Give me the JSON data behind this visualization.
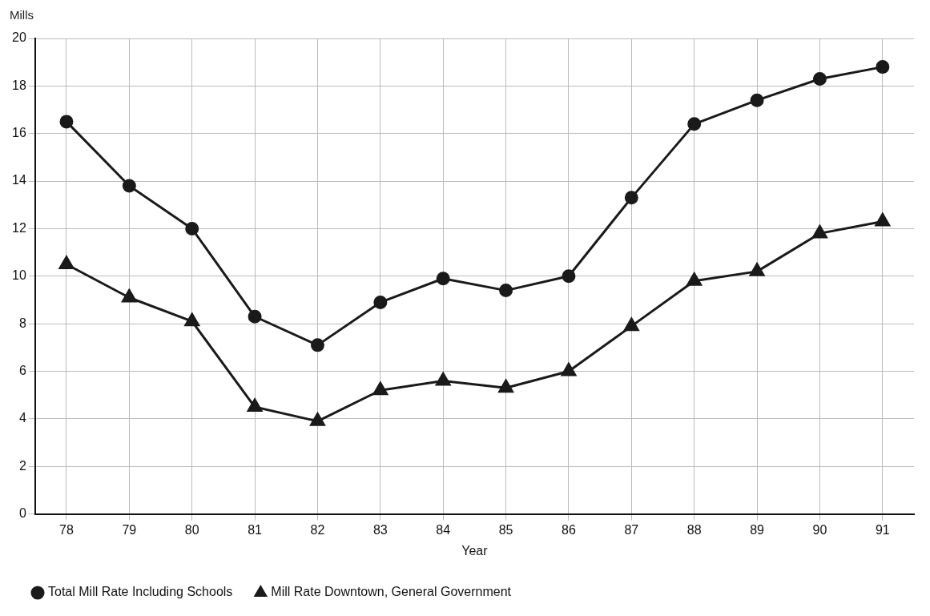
{
  "chart_data": {
    "type": "line",
    "xlabel": "Year",
    "ylabel": "Mills",
    "categories": [
      "78",
      "79",
      "80",
      "81",
      "82",
      "83",
      "84",
      "85",
      "86",
      "87",
      "88",
      "89",
      "90",
      "91"
    ],
    "series": [
      {
        "name": "Total Mill Rate Including Schools",
        "color": "#1a1a1a",
        "marker": "circle",
        "values": [
          16.5,
          13.8,
          12.0,
          8.3,
          7.1,
          8.9,
          9.9,
          9.4,
          10.0,
          13.3,
          16.4,
          17.4,
          18.3,
          18.8
        ]
      },
      {
        "name": "Mill Rate Downtown, General Government",
        "color": "#1a1a1a",
        "marker": "triangle",
        "values": [
          10.5,
          9.1,
          8.1,
          4.5,
          3.9,
          5.2,
          5.6,
          5.3,
          6.0,
          7.9,
          9.8,
          10.2,
          11.8,
          12.3
        ]
      }
    ],
    "ylim": [
      0,
      20
    ],
    "yticks": [
      0,
      2,
      4,
      6,
      8,
      10,
      12,
      14,
      16,
      18,
      20
    ],
    "grid": true,
    "legend": "bottom left",
    "line_style": "solid"
  }
}
